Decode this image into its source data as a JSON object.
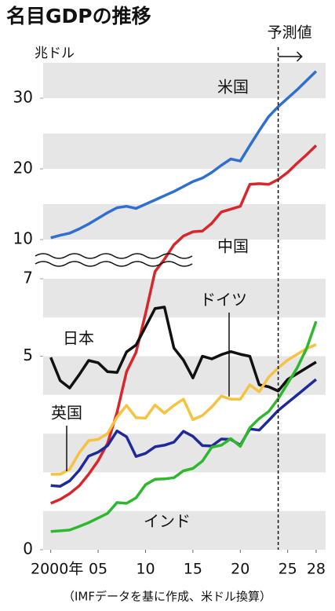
{
  "chart_data": {
    "type": "line",
    "title": "名目GDPの推移",
    "y_unit": "兆ドル",
    "footnote": "（IMFデータを基に作成、米ドル換算）",
    "forecast": {
      "label": "予測値",
      "x": 2024
    },
    "x": [
      2000,
      2001,
      2002,
      2003,
      2004,
      2005,
      2006,
      2007,
      2008,
      2009,
      2010,
      2011,
      2012,
      2013,
      2014,
      2015,
      2016,
      2017,
      2018,
      2019,
      2020,
      2021,
      2022,
      2023,
      2024,
      2025,
      2026,
      2027,
      2028
    ],
    "xlim": [
      1999.2,
      2029
    ],
    "xticks": [
      {
        "value": 2000,
        "label": "2000年"
      },
      {
        "value": 2005,
        "label": "05"
      },
      {
        "value": 2010,
        "label": "10"
      },
      {
        "value": 2015,
        "label": "15"
      },
      {
        "value": 2020,
        "label": "20"
      },
      {
        "value": 2025,
        "label": "25"
      },
      {
        "value": 2028,
        "label": "28"
      }
    ],
    "ylim": [
      0,
      35
    ],
    "y_break": [
      7,
      10
    ],
    "yticks": [
      0,
      5,
      7,
      10,
      20,
      30
    ],
    "grid": "bands",
    "series": [
      {
        "name": "米国",
        "color": "#2f6fd0",
        "values": [
          10.25,
          10.6,
          10.9,
          11.5,
          12.2,
          13.0,
          13.8,
          14.5,
          14.7,
          14.4,
          15.0,
          15.6,
          16.2,
          16.8,
          17.5,
          18.2,
          18.7,
          19.5,
          20.5,
          21.4,
          21.1,
          23.3,
          25.4,
          27.4,
          28.8,
          30.0,
          31.2,
          32.5,
          33.8
        ]
      },
      {
        "name": "中国",
        "color": "#d9262a",
        "values": [
          1.2,
          1.3,
          1.45,
          1.65,
          1.95,
          2.3,
          2.75,
          3.55,
          4.6,
          5.1,
          6.1,
          7.55,
          8.5,
          9.6,
          10.5,
          11.1,
          11.2,
          12.3,
          13.9,
          14.3,
          14.7,
          17.8,
          17.9,
          17.8,
          18.5,
          19.5,
          20.8,
          22.0,
          23.3
        ]
      },
      {
        "name": "日本",
        "color": "#111111",
        "values": [
          4.97,
          4.37,
          4.18,
          4.52,
          4.89,
          4.83,
          4.6,
          4.58,
          5.11,
          5.29,
          5.76,
          6.23,
          6.27,
          5.21,
          4.9,
          4.44,
          5.0,
          4.93,
          5.04,
          5.12,
          5.05,
          5.0,
          4.26,
          4.21,
          4.1,
          4.4,
          4.55,
          4.7,
          4.85
        ]
      },
      {
        "name": "ドイツ",
        "color": "#f5c242",
        "values": [
          1.95,
          1.95,
          2.08,
          2.5,
          2.82,
          2.85,
          3.0,
          3.43,
          3.73,
          3.41,
          3.4,
          3.74,
          3.53,
          3.73,
          3.89,
          3.36,
          3.47,
          3.69,
          3.97,
          3.89,
          3.89,
          4.26,
          4.08,
          4.46,
          4.7,
          4.9,
          5.05,
          5.2,
          5.3
        ]
      },
      {
        "name": "英国",
        "color": "#1e2a9a",
        "values": [
          1.66,
          1.64,
          1.78,
          2.05,
          2.42,
          2.52,
          2.69,
          3.07,
          2.92,
          2.41,
          2.49,
          2.66,
          2.7,
          2.78,
          3.06,
          2.93,
          2.69,
          2.68,
          2.86,
          2.85,
          2.7,
          3.12,
          3.09,
          3.34,
          3.6,
          3.8,
          4.0,
          4.2,
          4.4
        ]
      },
      {
        "name": "インド",
        "color": "#2db82d",
        "values": [
          0.47,
          0.49,
          0.51,
          0.6,
          0.7,
          0.82,
          0.94,
          1.22,
          1.2,
          1.34,
          1.68,
          1.82,
          1.83,
          1.86,
          2.04,
          2.1,
          2.29,
          2.65,
          2.7,
          2.87,
          2.67,
          3.15,
          3.39,
          3.57,
          3.9,
          4.3,
          4.7,
          5.2,
          5.9
        ]
      }
    ]
  }
}
